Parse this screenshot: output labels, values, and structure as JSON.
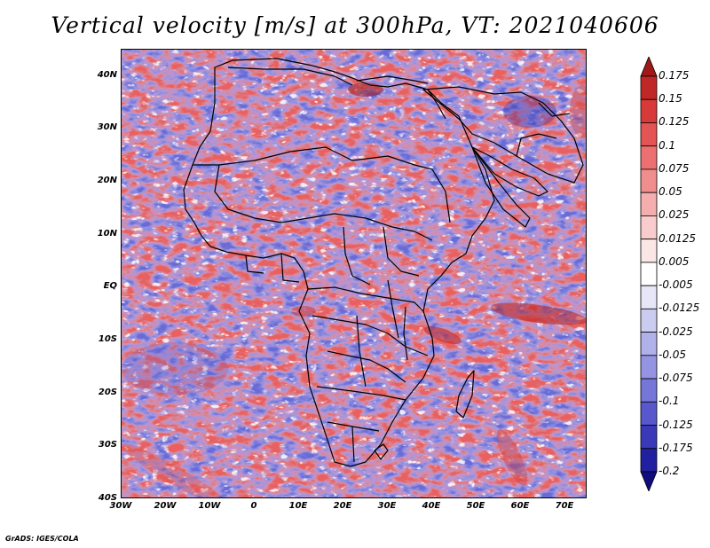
{
  "title": "Vertical velocity [m/s] at 300hPa, VT: 2021040606",
  "credit": "GrADS: IGES/COLA",
  "map": {
    "lon_range": [
      -30,
      75
    ],
    "lat_range": [
      -40,
      45
    ],
    "lat_ticks": [
      {
        "value": 40,
        "label": "40N"
      },
      {
        "value": 30,
        "label": "30N"
      },
      {
        "value": 20,
        "label": "20N"
      },
      {
        "value": 10,
        "label": "10N"
      },
      {
        "value": 0,
        "label": "EQ"
      },
      {
        "value": -10,
        "label": "10S"
      },
      {
        "value": -20,
        "label": "20S"
      },
      {
        "value": -30,
        "label": "30S"
      },
      {
        "value": -40,
        "label": "40S"
      }
    ],
    "lon_ticks": [
      {
        "value": -30,
        "label": "30W"
      },
      {
        "value": -20,
        "label": "20W"
      },
      {
        "value": -10,
        "label": "10W"
      },
      {
        "value": 0,
        "label": "0"
      },
      {
        "value": 10,
        "label": "10E"
      },
      {
        "value": 20,
        "label": "20E"
      },
      {
        "value": 30,
        "label": "30E"
      },
      {
        "value": 40,
        "label": "40E"
      },
      {
        "value": 50,
        "label": "50E"
      },
      {
        "value": 60,
        "label": "60E"
      },
      {
        "value": 70,
        "label": "70E"
      }
    ]
  },
  "colorbar": {
    "levels": [
      "0.175",
      "0.15",
      "0.125",
      "0.1",
      "0.075",
      "0.05",
      "0.025",
      "0.0125",
      "0.005",
      "-0.005",
      "-0.0125",
      "-0.025",
      "-0.05",
      "-0.075",
      "-0.1",
      "-0.125",
      "-0.175",
      "-0.2"
    ],
    "colors": [
      "#a01818",
      "#c02828",
      "#d83a3a",
      "#e45454",
      "#ec7070",
      "#f08e8e",
      "#f4aeae",
      "#f8cccc",
      "#fbe6e6",
      "#ffffff",
      "#e6e6f6",
      "#ccccf0",
      "#b0b0ea",
      "#9494e2",
      "#7676d8",
      "#5858cc",
      "#3a3ab8",
      "#2020a0",
      "#100c80"
    ]
  }
}
